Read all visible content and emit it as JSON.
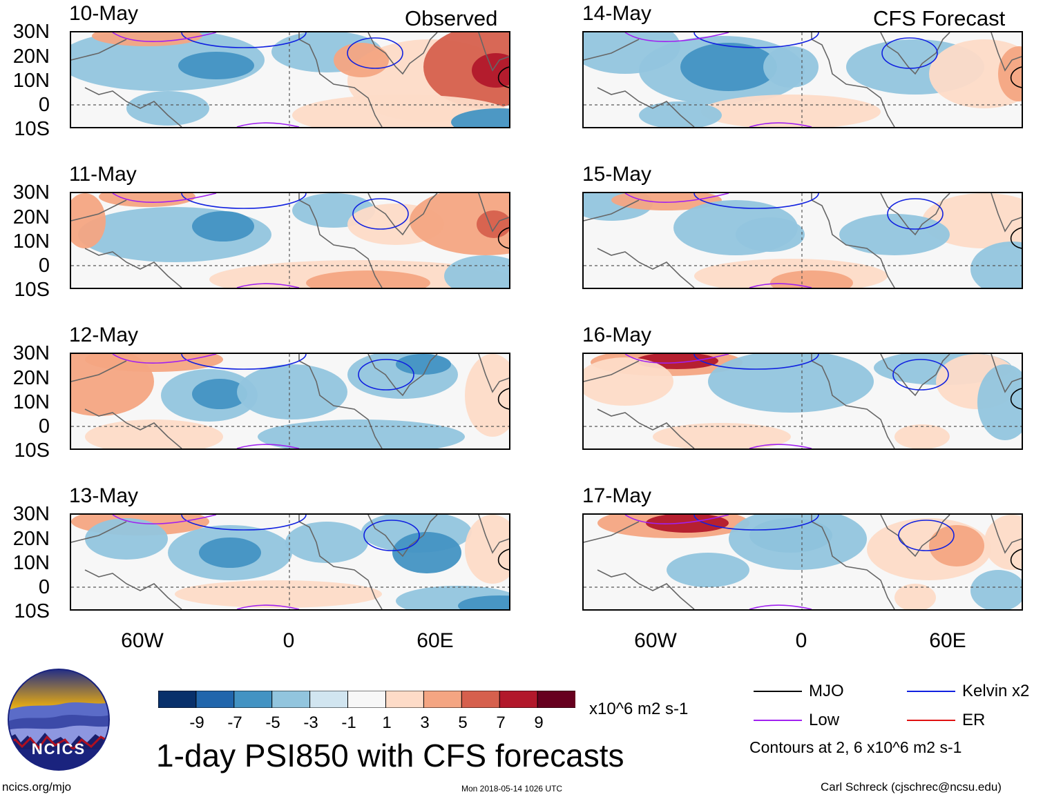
{
  "title": "1-day PSI850 with CFS forecasts",
  "left_column_label": "Observed",
  "right_column_label": "CFS Forecast",
  "lat_labels": [
    "30N",
    "20N",
    "10N",
    "0",
    "10S"
  ],
  "lon_labels": [
    "60W",
    "0",
    "60E"
  ],
  "panels": [
    {
      "date": "10-May",
      "column": "Observed"
    },
    {
      "date": "11-May",
      "column": "Observed"
    },
    {
      "date": "12-May",
      "column": "Observed"
    },
    {
      "date": "13-May",
      "column": "Observed"
    },
    {
      "date": "14-May",
      "column": "CFS Forecast"
    },
    {
      "date": "15-May",
      "column": "CFS Forecast"
    },
    {
      "date": "16-May",
      "column": "CFS Forecast"
    },
    {
      "date": "17-May",
      "column": "CFS Forecast"
    }
  ],
  "colorbar": {
    "labels": [
      "-9",
      "-7",
      "-5",
      "-3",
      "-1",
      "1",
      "3",
      "5",
      "7",
      "9"
    ],
    "colors": [
      "#08306b",
      "#2166ac",
      "#4393c3",
      "#92c5de",
      "#d1e5f0",
      "#f7f7f7",
      "#fddbc7",
      "#f4a582",
      "#d6604d",
      "#b2182b",
      "#67001f"
    ],
    "units": "x10^6 m2 s-1"
  },
  "legend": {
    "items": [
      {
        "label": "MJO",
        "color": "#000000"
      },
      {
        "label": "Kelvin x2",
        "color": "#1020e0"
      },
      {
        "label": "Low",
        "color": "#a020f0"
      },
      {
        "label": "ER",
        "color": "#e01010"
      }
    ],
    "contours_note": "Contours at 2, 6 x10^6 m2 s-1"
  },
  "logo": {
    "text": "NCICS"
  },
  "footer": {
    "url": "ncics.org/mjo",
    "timestamp": "Mon 2018-05-14 1026 UTC",
    "author": "Carl Schreck (cjschrec@ncsu.edu)"
  }
}
